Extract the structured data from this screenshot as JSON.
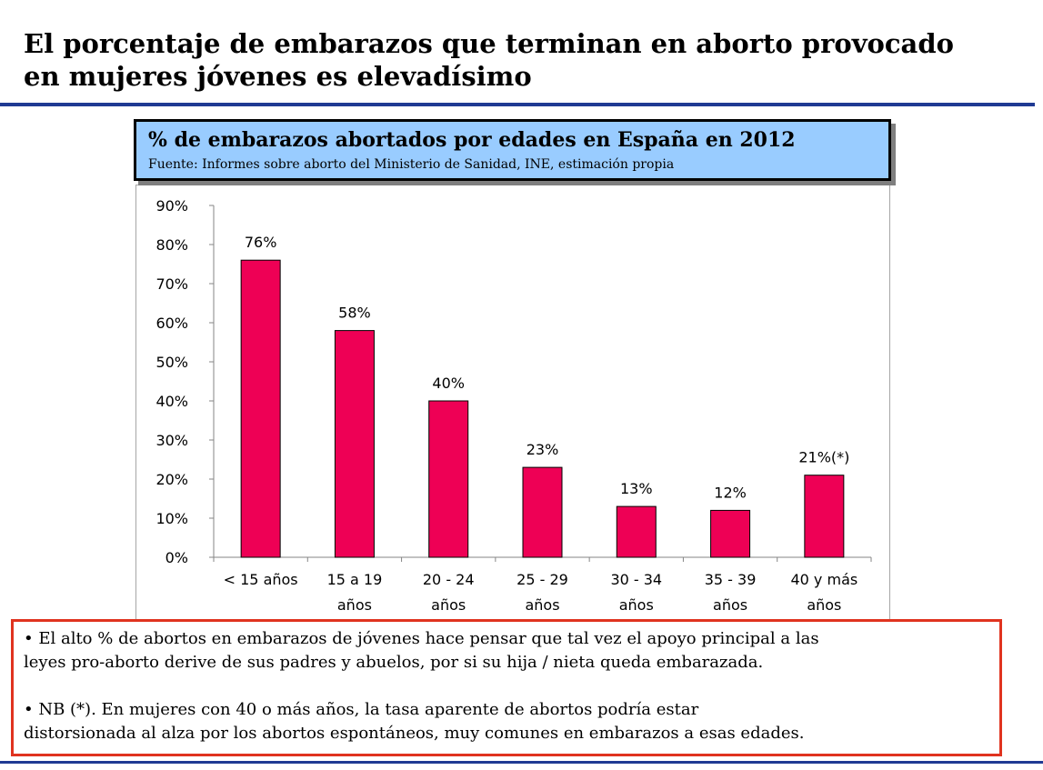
{
  "slide": {
    "title_line1": "El porcentaje de embarazos que terminan en aborto provocado",
    "title_line2": "en mujeres jóvenes es elevadísimo"
  },
  "chart_header": {
    "title": "% de embarazos abortados por edades en España en 2012",
    "source": "Fuente: Informes sobre aborto del Ministerio de Sanidad, INE, estimación propia"
  },
  "chart_data": {
    "type": "bar",
    "title": "% de embarazos abortados por edades en España en 2012",
    "xlabel": "",
    "ylabel": "",
    "ylim": [
      0,
      90
    ],
    "yticks": [
      0,
      10,
      20,
      30,
      40,
      50,
      60,
      70,
      80,
      90
    ],
    "ytick_labels": [
      "0%",
      "10%",
      "20%",
      "30%",
      "40%",
      "50%",
      "60%",
      "70%",
      "80%",
      "90%"
    ],
    "categories": [
      [
        "< 15 años"
      ],
      [
        "15 a 19",
        "años"
      ],
      [
        "20 - 24",
        "años"
      ],
      [
        "25 - 29",
        "años"
      ],
      [
        "30 - 34",
        "años"
      ],
      [
        "35 - 39",
        "años"
      ],
      [
        "40 y más",
        "años"
      ]
    ],
    "values": [
      76,
      58,
      40,
      23,
      13,
      12,
      21
    ],
    "data_labels": [
      "76%",
      "58%",
      "40%",
      "23%",
      "13%",
      "12%",
      "21%(*)"
    ],
    "bar_color": "#ee0055",
    "grid": false,
    "legend": "none"
  },
  "notes": {
    "p1": "• El alto % de abortos en embarazos de jóvenes hace pensar que tal vez el apoyo principal a las\nleyes pro-aborto  derive de sus padres y abuelos, por si su hija / nieta queda embarazada.",
    "p2": "• NB (*). En mujeres con 40 o más años, la tasa aparente de abortos  podría estar\ndistorsionada al alza por los abortos espontáneos, muy comunes en embarazos a esas edades."
  }
}
